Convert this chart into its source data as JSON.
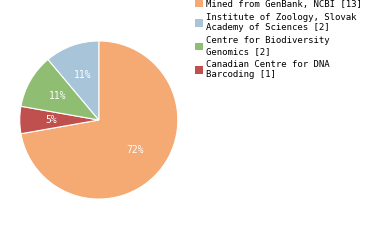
{
  "slices": [
    13,
    1,
    2,
    2
  ],
  "percentages": [
    "72%",
    "5%",
    "11%",
    "11%"
  ],
  "colors": [
    "#F5A973",
    "#C0504D",
    "#8FBD72",
    "#A8C4D9"
  ],
  "legend_labels": [
    "Mined from GenBank, NCBI [13]",
    "Institute of Zoology, Slovak\nAcademy of Sciences [2]",
    "Centre for Biodiversity\nGenomics [2]",
    "Canadian Centre for DNA\nBarcoding [1]"
  ],
  "legend_colors": [
    "#F5A973",
    "#A8C4D9",
    "#8FBD72",
    "#C0504D"
  ],
  "pct_colors": [
    "white",
    "white",
    "white",
    "white"
  ],
  "startangle": 90,
  "background_color": "#ffffff",
  "pct_font_size": 7,
  "legend_font_size": 6.5
}
